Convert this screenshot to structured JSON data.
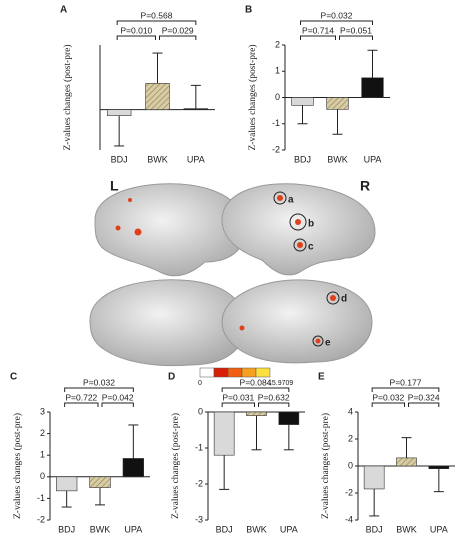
{
  "chart_data": [
    {
      "type": "bar",
      "panel": "A",
      "y_label": "Z-values changes (post-pre)",
      "categories": [
        "BDJ",
        "BWK",
        "UPA"
      ],
      "values": [
        -0.3,
        1.3,
        0.05
      ],
      "errors": [
        1.5,
        1.5,
        1.15
      ],
      "colors": [
        "#d9d9d9",
        "#cbbf95",
        "#111111"
      ],
      "hatch": [
        false,
        true,
        false
      ],
      "ylim": [
        -2,
        3.2
      ],
      "comparisons": [
        "P=0.568",
        "P=0.010",
        "P=0.029"
      ]
    },
    {
      "type": "bar",
      "panel": "B",
      "y_label": "Z-values changes (post-pre)",
      "categories": [
        "BDJ",
        "BWK",
        "UPA"
      ],
      "values": [
        -0.3,
        -0.45,
        0.75
      ],
      "errors": [
        0.7,
        0.95,
        1.05
      ],
      "colors": [
        "#d9d9d9",
        "#cbbf95",
        "#111111"
      ],
      "hatch": [
        false,
        true,
        false
      ],
      "ylim": [
        -2,
        2
      ],
      "yticks": [
        -2,
        -1,
        0,
        1,
        2
      ],
      "comparisons": [
        "P=0.032",
        "P=0.714",
        "P=0.051"
      ]
    },
    {
      "type": "bar",
      "panel": "C",
      "y_label": "Z-values changes (post-pre)",
      "categories": [
        "BDJ",
        "BWK",
        "UPA"
      ],
      "values": [
        -0.65,
        -0.5,
        0.85
      ],
      "errors": [
        0.75,
        0.8,
        1.55
      ],
      "colors": [
        "#d9d9d9",
        "#cbbf95",
        "#111111"
      ],
      "hatch": [
        false,
        true,
        false
      ],
      "ylim": [
        -2,
        3
      ],
      "yticks": [
        -2,
        -1,
        0,
        1,
        2,
        3
      ],
      "comparisons": [
        "P=0.032",
        "P=0.722",
        "P=0.042"
      ]
    },
    {
      "type": "bar",
      "panel": "D",
      "y_label": "Z-values changes (post-pre)",
      "categories": [
        "BDJ",
        "BWK",
        "UPA"
      ],
      "values": [
        -1.2,
        -0.1,
        -0.35
      ],
      "errors": [
        0.95,
        0.95,
        0.7
      ],
      "colors": [
        "#d9d9d9",
        "#cbbf95",
        "#111111"
      ],
      "hatch": [
        false,
        true,
        false
      ],
      "ylim": [
        -3,
        0
      ],
      "yticks": [
        -3,
        -2,
        -1,
        0
      ],
      "comparisons": [
        "P=0.084",
        "P=0.031",
        "P=0.632"
      ]
    },
    {
      "type": "bar",
      "panel": "E",
      "y_label": "Z-values changes (post-pre)",
      "categories": [
        "BDJ",
        "BWK",
        "UPA"
      ],
      "values": [
        -1.7,
        0.6,
        -0.2
      ],
      "errors": [
        2.0,
        1.5,
        1.7
      ],
      "colors": [
        "#d9d9d9",
        "#cbbf95",
        "#111111"
      ],
      "hatch": [
        false,
        true,
        false
      ],
      "ylim": [
        -4,
        4
      ],
      "yticks": [
        -4,
        -2,
        0,
        2,
        4
      ],
      "comparisons": [
        "P=0.177",
        "P=0.032",
        "P=0.324"
      ]
    }
  ],
  "brain": {
    "left": "L",
    "right": "R",
    "labels": [
      "a",
      "b",
      "c",
      "d",
      "e"
    ],
    "colorbar_min": "0",
    "colorbar_max": "15.9709"
  }
}
